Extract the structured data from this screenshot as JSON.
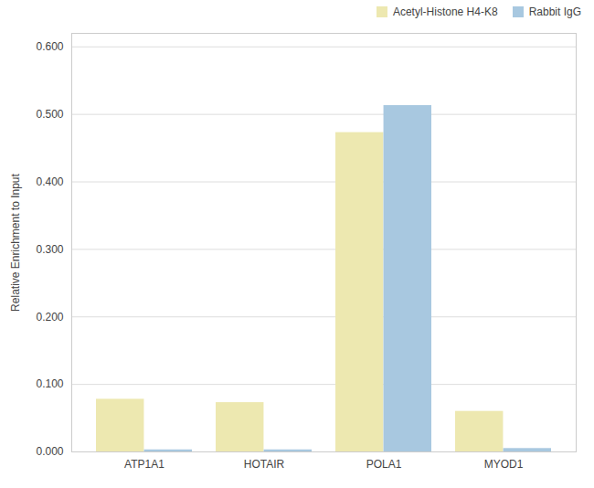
{
  "chart_data": {
    "type": "bar",
    "categories": [
      "ATP1A1",
      "HOTAIR",
      "POLA1",
      "MYOD1"
    ],
    "series": [
      {
        "name": "Acetyl-Histone H4-K8",
        "color": "#EDE8B0",
        "values": [
          0.078,
          0.073,
          0.473,
          0.06
        ]
      },
      {
        "name": "Rabbit IgG",
        "color": "#A8C8E0",
        "values": [
          0.003,
          0.003,
          0.513,
          0.005
        ]
      }
    ],
    "ylabel": "Relative Enrichment to Input",
    "ylim": [
      0.0,
      0.62
    ],
    "yticks": [
      {
        "value": 0.0,
        "label": "0.000"
      },
      {
        "value": 0.1,
        "label": "0.100"
      },
      {
        "value": 0.2,
        "label": "0.200"
      },
      {
        "value": 0.3,
        "label": "0.300"
      },
      {
        "value": 0.4,
        "label": "0.400"
      },
      {
        "value": 0.5,
        "label": "0.500"
      },
      {
        "value": 0.6,
        "label": "0.600"
      }
    ],
    "grid": true,
    "legend": "upper right"
  }
}
